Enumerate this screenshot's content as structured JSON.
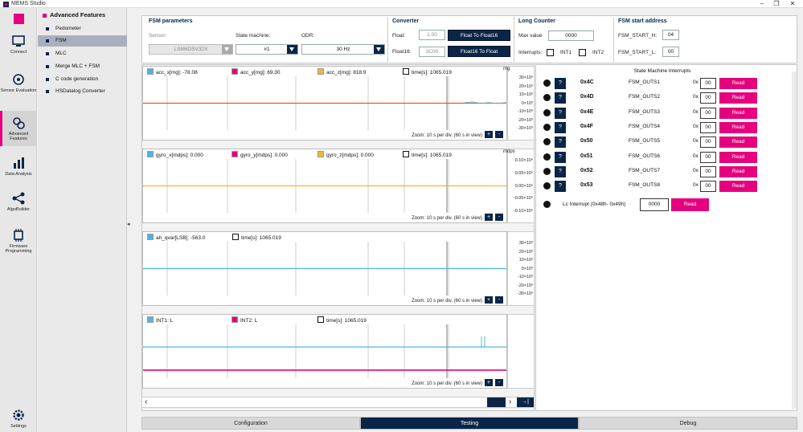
{
  "app": {
    "title": "MEMS Studio"
  },
  "nav": [
    {
      "label": "Connect",
      "icon": "connect-icon"
    },
    {
      "label": "Sensor Evaluation",
      "icon": "sensor-evaluation-icon"
    },
    {
      "label": "Advanced Features",
      "icon": "gears-icon"
    },
    {
      "label": "Data Analysis",
      "icon": "chart-icon"
    },
    {
      "label": "AlgoBuilder",
      "icon": "algobuilder-icon"
    },
    {
      "label": "Firmware Programming",
      "icon": "chip-icon"
    },
    {
      "label": "Settings",
      "icon": "gear-icon"
    }
  ],
  "submenu": {
    "title": "Advanced Features",
    "items": [
      "Pedometer",
      "FSM",
      "MLC",
      "Merge MLC + FSM",
      "C code generation",
      "HSDatalog Converter"
    ],
    "active": "FSM"
  },
  "fsm_params": {
    "title": "FSM parameters",
    "sensor_label": "Sensor:",
    "sensor_value": "LSM6DSV32X",
    "sm_label": "State machine:",
    "sm_value": "#1",
    "odr_label": "ODR:",
    "odr_value": "30 Hz"
  },
  "converter": {
    "title": "Converter",
    "float_label": "Float:",
    "float_value": "1.00",
    "float16_label": "Float16:",
    "float16_value": "3C00",
    "btn_to_f16": "Float To Float16",
    "btn_to_float": "Float16 To Float"
  },
  "long_counter": {
    "title": "Long Counter",
    "max_label": "Max value",
    "max_value": "0000",
    "interrupts_label": "Interrupts:",
    "int1": "INT1",
    "int2": "INT2"
  },
  "start_address": {
    "title": "FSM start address",
    "h_label": "FSM_START_H:",
    "h_value": "04",
    "l_label": "FSM_START_L:",
    "l_value": "00"
  },
  "charts": [
    {
      "legends": [
        {
          "label": "acc_x[mg]:",
          "value": "-78.08",
          "color": "#4fb3e8"
        },
        {
          "label": "acc_y[mg]:",
          "value": "69.30",
          "color": "#e6007e"
        },
        {
          "label": "acc_z[mg]:",
          "value": "818.9",
          "color": "#f2b530"
        },
        {
          "label": "time[s]:",
          "value": "1065.019",
          "color": "none"
        }
      ],
      "unit": "mg",
      "yticks": [
        "30×10³",
        "20×10³",
        "10×10³",
        "0×10³",
        "-10×10³",
        "-20×10³",
        "-30×10³"
      ],
      "zoom": "Zoom: 10 s per div. (60 s in view)"
    },
    {
      "legends": [
        {
          "label": "gyro_x[mdps]:",
          "value": "0.000",
          "color": "#4fb3e8"
        },
        {
          "label": "gyro_y[mdps]:",
          "value": "0.000",
          "color": "#e6007e"
        },
        {
          "label": "gyro_z[mdps]:",
          "value": "0.000",
          "color": "#f2b530"
        },
        {
          "label": "time[s]:",
          "value": "1065.019",
          "color": "none"
        }
      ],
      "unit": "mdps",
      "yticks": [
        "0.10×10⁶",
        "0.05×10⁶",
        "0.00×10⁶",
        "-0.05×10⁶",
        "-0.10×10⁶"
      ],
      "zoom": "Zoom: 10 s per div. (60 s in view)"
    },
    {
      "legends": [
        {
          "label": "ah_qvar[LSB]:",
          "value": "-563.0",
          "color": "#4fb3e8"
        },
        {
          "label": "time[s]:",
          "value": "1065.019",
          "color": "none"
        }
      ],
      "unit": "",
      "yticks": [
        "30×10³",
        "20×10³",
        "10×10³",
        "0×10³",
        "-10×10³",
        "-20×10³",
        "-30×10³"
      ],
      "zoom": "Zoom: 10 s per div. (60 s in view)"
    },
    {
      "legends": [
        {
          "label": "INT1:",
          "value": "L",
          "color": "#4fb3e8"
        },
        {
          "label": "INT2:",
          "value": "L",
          "color": "#e6007e"
        },
        {
          "label": "time[s]:",
          "value": "1065.019",
          "color": "none"
        }
      ],
      "unit": "",
      "yticks": [],
      "zoom": "Zoom: 10 s per div. (60 s in view)"
    }
  ],
  "interrupts": {
    "title": "State Machine Interrupts",
    "rows": [
      {
        "addr": "0x4C",
        "name": "FSM_OUTS1",
        "value": "00"
      },
      {
        "addr": "0x4D",
        "name": "FSM_OUTS2",
        "value": "00"
      },
      {
        "addr": "0x4E",
        "name": "FSM_OUTS3",
        "value": "00"
      },
      {
        "addr": "0x4F",
        "name": "FSM_OUTS4",
        "value": "00"
      },
      {
        "addr": "0x50",
        "name": "FSM_OUTS5",
        "value": "00"
      },
      {
        "addr": "0x51",
        "name": "FSM_OUTS6",
        "value": "00"
      },
      {
        "addr": "0x52",
        "name": "FSM_OUTS7",
        "value": "00"
      },
      {
        "addr": "0x53",
        "name": "FSM_OUTS8",
        "value": "00"
      }
    ],
    "prefix": "0x",
    "q": "?",
    "read": "Read",
    "lc_label": "Lc Interrupt (0x48h- 0x49h)",
    "lc_value": "0000"
  },
  "tabs": [
    {
      "label": "Configuration"
    },
    {
      "label": "Testing",
      "active": true
    },
    {
      "label": "Debug"
    }
  ],
  "scroll": {
    "left": "‹",
    "right": "›",
    "end": "→|"
  },
  "zoom_plus": "+",
  "zoom_minus": "-"
}
